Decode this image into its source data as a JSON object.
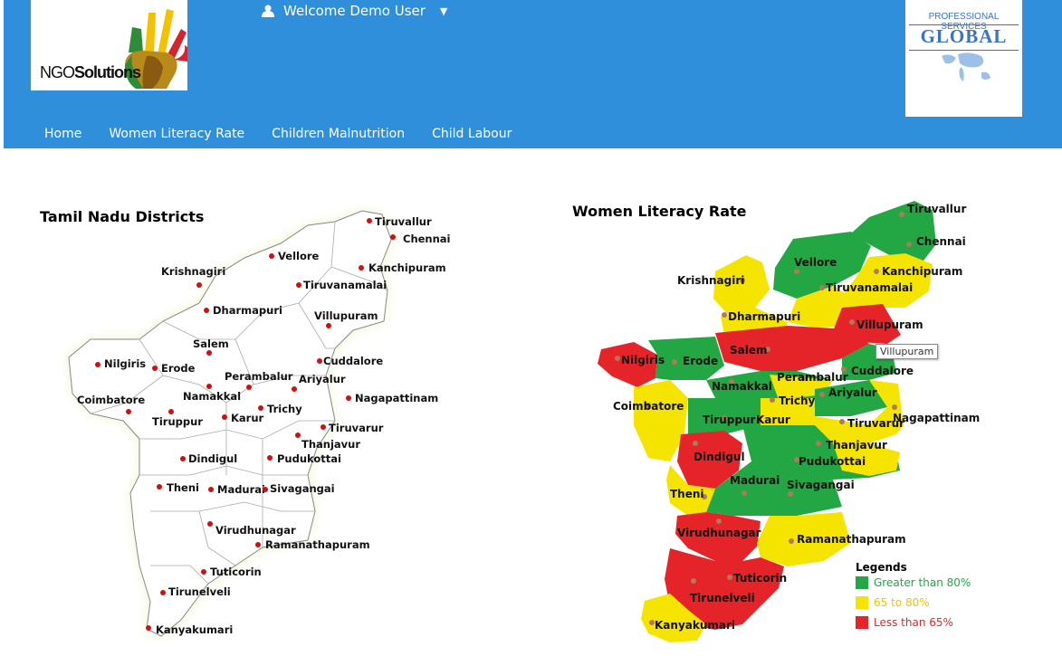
{
  "header": {
    "logo_left": {
      "text_plain": "NGO",
      "text_bold": "Solutions"
    },
    "welcome": "Welcome Demo User",
    "logo_right": {
      "top": "PROFESSIONAL SERVICES",
      "main": "GLOBAL"
    }
  },
  "nav": [
    "Home",
    "Women Literacy Rate",
    "Children Malnutrition",
    "Child Labour"
  ],
  "left_panel": {
    "title": "Tamil Nadu Districts",
    "districts": [
      "Tiruvallur",
      "Chennai",
      "Vellore",
      "Kanchipuram",
      "Krishnagiri",
      "Tiruvanamalai",
      "Dharmapuri",
      "Villupuram",
      "Salem",
      "Cuddalore",
      "Nilgiris",
      "Erode",
      "Perambalur",
      "Ariyalur",
      "Namakkal",
      "Nagapattinam",
      "Coimbatore",
      "Trichy",
      "Tiruppur",
      "Karur",
      "Tiruvarur",
      "Thanjavur",
      "Dindigul",
      "Pudukottai",
      "Theni",
      "Madurai",
      "Sivagangai",
      "Virudhunagar",
      "Ramanathapuram",
      "Tuticorin",
      "Tirunelveli",
      "Kanyakumari"
    ]
  },
  "right_panel": {
    "title": "Women Literacy Rate",
    "tooltip": "Villupuram",
    "legend": {
      "title": "Legends",
      "items": [
        {
          "label": "Greater than 80%",
          "color": "#22a744"
        },
        {
          "label": "65 to 80%",
          "color": "#f4e400"
        },
        {
          "label": "Less than 65%",
          "color": "#e5242a"
        }
      ]
    },
    "colors": {
      "green": "#22a744",
      "yellow": "#f4e400",
      "red": "#e5242a"
    }
  }
}
